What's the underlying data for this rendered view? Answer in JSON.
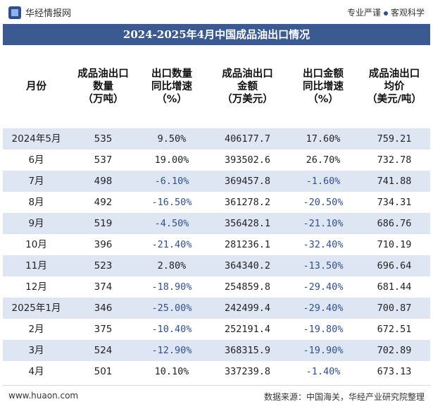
{
  "brand": {
    "name": "华经情报网"
  },
  "tagline": {
    "left": "专业严谨",
    "right": "客观科学"
  },
  "footer": {
    "site": "www.huaon.com",
    "source": "数据来源：中国海关，华经产业研究院整理"
  },
  "chart_data": {
    "type": "table",
    "title": "2024-2025年4月中国成品油出口情况",
    "columns": [
      "月份",
      "成品油出口\n数量\n（万吨）",
      "出口数量\n同比增速\n（%）",
      "成品油出口\n金额\n（万美元）",
      "出口金额\n同比增速\n（%）",
      "成品油出口\n均价\n（美元/吨）"
    ],
    "rows": [
      [
        "2024年5月",
        "535",
        "9.50%",
        "406177.7",
        "17.60%",
        "759.21"
      ],
      [
        "6月",
        "537",
        "19.00%",
        "393502.6",
        "26.70%",
        "732.78"
      ],
      [
        "7月",
        "498",
        "-6.10%",
        "369457.8",
        "-1.60%",
        "741.88"
      ],
      [
        "8月",
        "492",
        "-16.50%",
        "361278.2",
        "-20.50%",
        "734.31"
      ],
      [
        "9月",
        "519",
        "-4.50%",
        "356428.1",
        "-21.10%",
        "686.76"
      ],
      [
        "10月",
        "396",
        "-21.40%",
        "281236.1",
        "-32.40%",
        "710.19"
      ],
      [
        "11月",
        "523",
        "2.80%",
        "364340.2",
        "-13.50%",
        "696.64"
      ],
      [
        "12月",
        "374",
        "-18.90%",
        "254859.8",
        "-29.40%",
        "681.44"
      ],
      [
        "2025年1月",
        "346",
        "-25.00%",
        "242499.4",
        "-29.40%",
        "700.87"
      ],
      [
        "2月",
        "375",
        "-10.40%",
        "252191.4",
        "-19.80%",
        "672.51"
      ],
      [
        "3月",
        "524",
        "-12.90%",
        "368315.9",
        "-19.90%",
        "702.89"
      ],
      [
        "4月",
        "501",
        "10.10%",
        "337239.8",
        "-1.40%",
        "673.13"
      ]
    ]
  }
}
